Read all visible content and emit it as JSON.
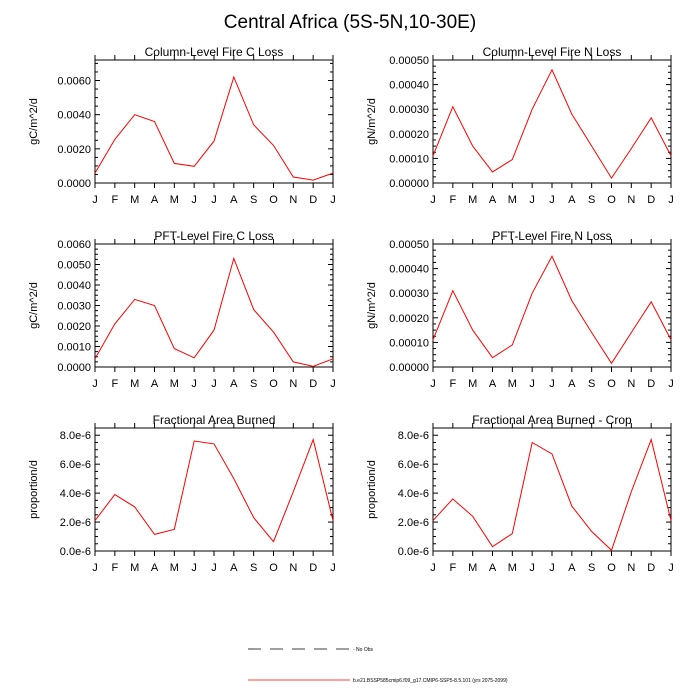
{
  "figure_title": "Central Africa (5S-5N,10-30E)",
  "legend": {
    "entries": [
      {
        "label": "No Obs",
        "style": "dashed",
        "color": "#000000"
      },
      {
        "label": "b.e21.BSSP585cmip6.f09_g17.CMIP6-SSP5-8.5.101 (yrs 2075-2099)",
        "style": "solid",
        "color": "#ff0000"
      }
    ]
  },
  "chart_data": [
    {
      "type": "line",
      "title": "Column-Level Fire C Loss",
      "ylabel": "gC/m^2/d",
      "categories": [
        "J",
        "F",
        "M",
        "A",
        "M",
        "J",
        "J",
        "A",
        "S",
        "O",
        "N",
        "D",
        "J"
      ],
      "ylim": [
        0,
        0.0072
      ],
      "yticks": [
        0,
        0.002,
        0.004,
        0.006
      ],
      "ytick_labels": [
        "0.0000",
        "0.0020",
        "0.0040",
        "0.0060"
      ],
      "line_color": "#ff0000",
      "values": [
        0.00058,
        0.00255,
        0.004,
        0.0036,
        0.00115,
        0.00098,
        0.00245,
        0.0062,
        0.0034,
        0.0022,
        0.00035,
        0.00017,
        0.00058
      ]
    },
    {
      "type": "line",
      "title": "Column-Level Fire N Loss",
      "ylabel": "gN/m^2/d",
      "categories": [
        "J",
        "F",
        "M",
        "A",
        "M",
        "J",
        "J",
        "A",
        "S",
        "O",
        "N",
        "D",
        "J"
      ],
      "ylim": [
        0,
        0.0005
      ],
      "yticks": [
        0,
        0.0001,
        0.0002,
        0.0003,
        0.0004,
        0.0005
      ],
      "ytick_labels": [
        "0.00000",
        "0.00010",
        "0.00020",
        "0.00030",
        "0.00040",
        "0.00050"
      ],
      "line_color": "#ff0000",
      "values": [
        0.00011,
        0.00031,
        0.00015,
        4.5e-05,
        9.5e-05,
        0.0003,
        0.00046,
        0.00028,
        0.00015,
        2e-05,
        0.00014,
        0.000265,
        0.00011
      ]
    },
    {
      "type": "line",
      "title": "PFT-Level Fire C Loss",
      "ylabel": "gC/m^2/d",
      "categories": [
        "J",
        "F",
        "M",
        "A",
        "M",
        "J",
        "J",
        "A",
        "S",
        "O",
        "N",
        "D",
        "J"
      ],
      "ylim": [
        0,
        0.006
      ],
      "yticks": [
        0,
        0.001,
        0.002,
        0.003,
        0.004,
        0.005,
        0.006
      ],
      "ytick_labels": [
        "0.0000",
        "0.0010",
        "0.0020",
        "0.0030",
        "0.0040",
        "0.0050",
        "0.0060"
      ],
      "line_color": "#ff0000",
      "values": [
        0.0004,
        0.0021,
        0.0033,
        0.003,
        0.0009,
        0.00045,
        0.0018,
        0.0053,
        0.0028,
        0.0017,
        0.00025,
        3e-05,
        0.0004
      ]
    },
    {
      "type": "line",
      "title": "PFT-Level Fire N Loss",
      "ylabel": "gN/m^2/d",
      "categories": [
        "J",
        "F",
        "M",
        "A",
        "M",
        "J",
        "J",
        "A",
        "S",
        "O",
        "N",
        "D",
        "J"
      ],
      "ylim": [
        0,
        0.0005
      ],
      "yticks": [
        0,
        0.0001,
        0.0002,
        0.0003,
        0.0004,
        0.0005
      ],
      "ytick_labels": [
        "0.00000",
        "0.00010",
        "0.00020",
        "0.00030",
        "0.00040",
        "0.00050"
      ],
      "line_color": "#ff0000",
      "values": [
        0.00011,
        0.00031,
        0.00015,
        3.8e-05,
        9e-05,
        0.0003,
        0.00045,
        0.00027,
        0.00014,
        1.5e-05,
        0.00014,
        0.000265,
        0.00011
      ]
    },
    {
      "type": "line",
      "title": "Fractional Area Burned",
      "ylabel": "proportion/d",
      "categories": [
        "J",
        "F",
        "M",
        "A",
        "M",
        "J",
        "J",
        "A",
        "S",
        "O",
        "N",
        "D",
        "J"
      ],
      "ylim": [
        0,
        8.5e-06
      ],
      "yticks": [
        0,
        2e-06,
        4e-06,
        6e-06,
        8e-06
      ],
      "ytick_labels": [
        "0.0e-6",
        "2.0e-6",
        "4.0e-6",
        "6.0e-6",
        "8.0e-6"
      ],
      "line_color": "#ff0000",
      "values": [
        2.1e-06,
        3.9e-06,
        3.05e-06,
        1.15e-06,
        1.5e-06,
        7.6e-06,
        7.4e-06,
        5e-06,
        2.3e-06,
        6.5e-07,
        4.1e-06,
        7.7e-06,
        2.1e-06
      ]
    },
    {
      "type": "line",
      "title": "Fractional Area Burned - Crop",
      "ylabel": "proportion/d",
      "categories": [
        "J",
        "F",
        "M",
        "A",
        "M",
        "J",
        "J",
        "A",
        "S",
        "O",
        "N",
        "D",
        "J"
      ],
      "ylim": [
        0,
        8.5e-06
      ],
      "yticks": [
        0,
        2e-06,
        4e-06,
        6e-06,
        8e-06
      ],
      "ytick_labels": [
        "0.0e-6",
        "2.0e-6",
        "4.0e-6",
        "6.0e-6",
        "8.0e-6"
      ],
      "line_color": "#ff0000",
      "values": [
        2.1e-06,
        3.6e-06,
        2.4e-06,
        3e-07,
        1.2e-06,
        7.5e-06,
        6.7e-06,
        3.1e-06,
        1.35e-06,
        5e-08,
        4.1e-06,
        7.7e-06,
        2.1e-06
      ]
    }
  ]
}
